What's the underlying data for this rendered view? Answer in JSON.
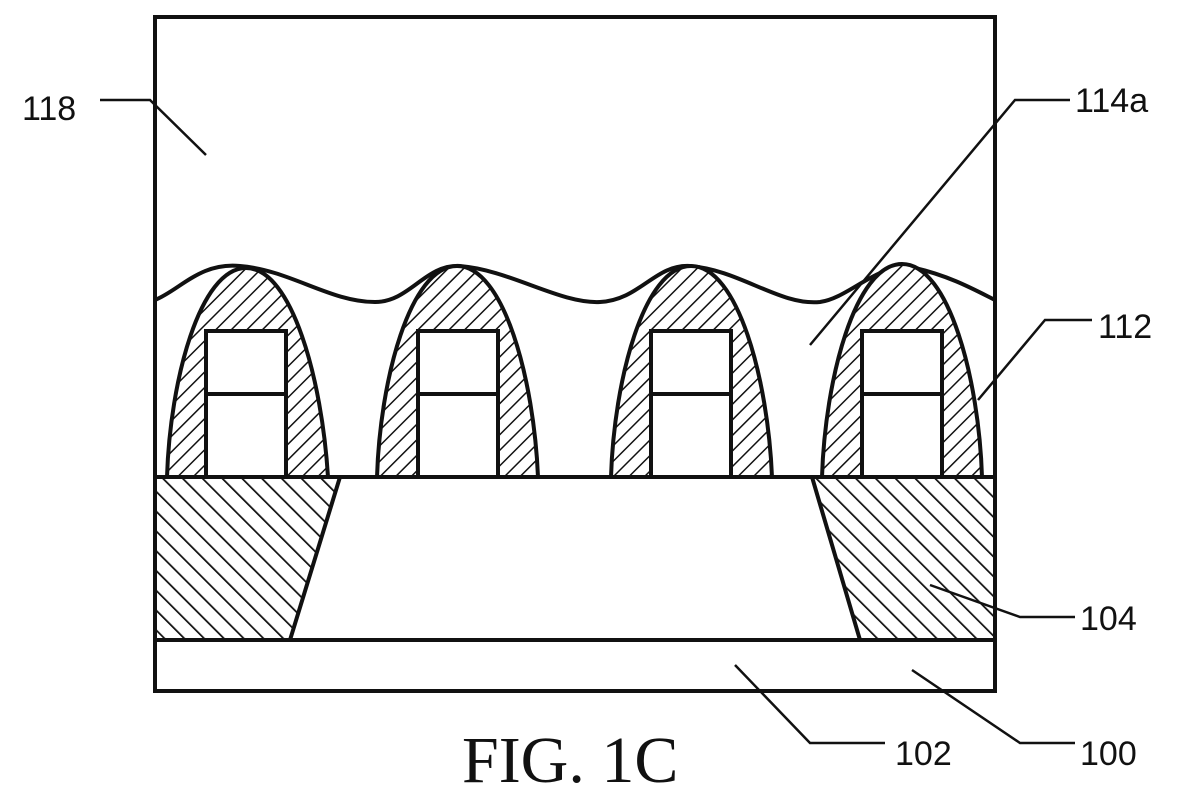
{
  "figure": {
    "caption": "FIG. 1C",
    "labels": {
      "ref_118": "118",
      "ref_114a": "114a",
      "ref_112": "112",
      "ref_104": "104",
      "ref_102": "102",
      "ref_100": "100"
    }
  },
  "colors": {
    "line": "#111111",
    "background": "#ffffff"
  }
}
